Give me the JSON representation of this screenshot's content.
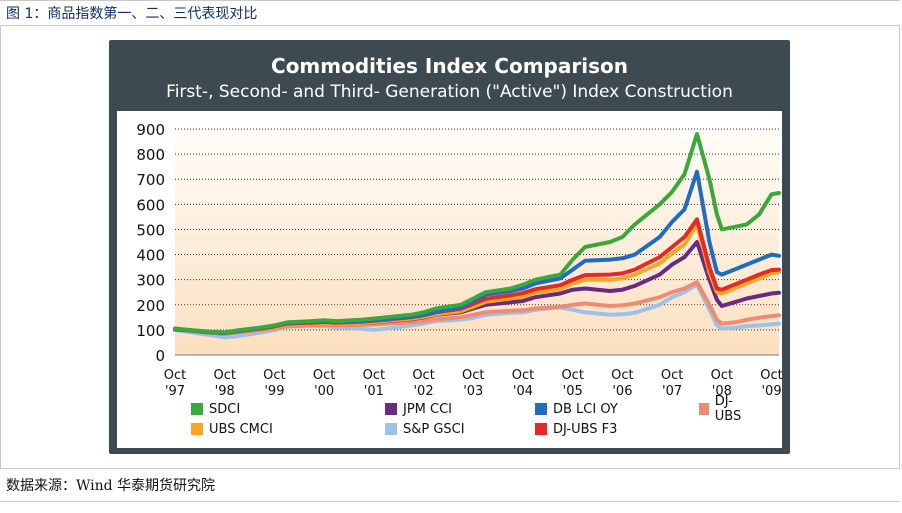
{
  "figure": {
    "caption": "图 1：商品指数第一、二、三代表现对比",
    "source": "数据来源：Wind 华泰期货研究院"
  },
  "chart_data": {
    "type": "line",
    "title": "Commodities Index Comparison",
    "subtitle": "First-, Second- and Third- Generation (\"Active\") Index Construction",
    "xlabel": "",
    "ylabel": "",
    "ylim": [
      0,
      900
    ],
    "yticks": [
      0,
      100,
      200,
      300,
      400,
      500,
      600,
      700,
      800,
      900
    ],
    "xlim": [
      1997.75,
      2009.9
    ],
    "xticks": [
      {
        "value": 1997.75,
        "label": [
          "Oct",
          "'97"
        ]
      },
      {
        "value": 1998.75,
        "label": [
          "Oct",
          "'98"
        ]
      },
      {
        "value": 1999.75,
        "label": [
          "Oct",
          "'99"
        ]
      },
      {
        "value": 2000.75,
        "label": [
          "Oct",
          "'00"
        ]
      },
      {
        "value": 2001.75,
        "label": [
          "Oct",
          "'01"
        ]
      },
      {
        "value": 2002.75,
        "label": [
          "Oct",
          "'02"
        ]
      },
      {
        "value": 2003.75,
        "label": [
          "Oct",
          "'03"
        ]
      },
      {
        "value": 2004.75,
        "label": [
          "Oct",
          "'04"
        ]
      },
      {
        "value": 2005.75,
        "label": [
          "Oct",
          "'05"
        ]
      },
      {
        "value": 2006.75,
        "label": [
          "Oct",
          "'06"
        ]
      },
      {
        "value": 2007.75,
        "label": [
          "Oct",
          "'07"
        ]
      },
      {
        "value": 2008.75,
        "label": [
          "Oct",
          "'08"
        ]
      },
      {
        "value": 2009.75,
        "label": [
          "Oct",
          "'09"
        ]
      }
    ],
    "grid": "horizontal-dotted",
    "legend_position": "bottom",
    "x": [
      1997.75,
      1998.0,
      1998.5,
      1998.75,
      1999.0,
      1999.5,
      1999.75,
      2000.0,
      2000.5,
      2000.75,
      2001.0,
      2001.5,
      2001.75,
      2002.0,
      2002.5,
      2002.75,
      2003.0,
      2003.5,
      2003.75,
      2004.0,
      2004.5,
      2004.75,
      2005.0,
      2005.5,
      2005.75,
      2006.0,
      2006.5,
      2006.75,
      2007.0,
      2007.5,
      2007.75,
      2008.0,
      2008.25,
      2008.5,
      2008.65,
      2008.75,
      2009.0,
      2009.25,
      2009.5,
      2009.75,
      2009.9
    ],
    "series": [
      {
        "name": "SDCI",
        "color": "#3aa83a",
        "values": [
          105,
          100,
          92,
          90,
          98,
          110,
          118,
          130,
          135,
          138,
          135,
          140,
          145,
          150,
          160,
          170,
          185,
          200,
          225,
          250,
          265,
          280,
          300,
          320,
          380,
          430,
          450,
          470,
          520,
          600,
          650,
          720,
          880,
          700,
          560,
          500,
          510,
          520,
          560,
          640,
          645
        ]
      },
      {
        "name": "JPM CCI",
        "color": "#6a2a82",
        "values": [
          102,
          98,
          88,
          86,
          92,
          105,
          112,
          122,
          125,
          128,
          125,
          128,
          130,
          135,
          142,
          150,
          160,
          170,
          185,
          200,
          210,
          215,
          230,
          245,
          260,
          265,
          255,
          260,
          275,
          320,
          360,
          390,
          450,
          300,
          220,
          195,
          210,
          225,
          235,
          245,
          248
        ]
      },
      {
        "name": "DB LCI OY",
        "color": "#1f6cc0",
        "values": [
          104,
          99,
          90,
          88,
          95,
          108,
          116,
          128,
          132,
          135,
          132,
          135,
          138,
          143,
          152,
          160,
          172,
          190,
          215,
          240,
          255,
          265,
          285,
          305,
          340,
          375,
          380,
          385,
          400,
          470,
          530,
          580,
          730,
          450,
          330,
          320,
          340,
          360,
          380,
          400,
          395
        ]
      },
      {
        "name": "DJ-UBS",
        "color": "#f08a70",
        "values": [
          103,
          98,
          88,
          85,
          90,
          100,
          106,
          115,
          118,
          120,
          118,
          120,
          122,
          125,
          130,
          135,
          142,
          150,
          160,
          170,
          176,
          178,
          185,
          192,
          200,
          205,
          195,
          198,
          205,
          230,
          250,
          265,
          290,
          200,
          140,
          125,
          130,
          140,
          148,
          155,
          158
        ]
      },
      {
        "name": "UBS CMCI",
        "color": "#f5a623",
        "values": [
          104,
          99,
          89,
          86,
          92,
          104,
          110,
          120,
          124,
          127,
          124,
          128,
          131,
          136,
          144,
          152,
          162,
          174,
          192,
          212,
          225,
          232,
          248,
          262,
          285,
          300,
          300,
          305,
          320,
          365,
          405,
          440,
          520,
          330,
          250,
          245,
          265,
          285,
          305,
          325,
          330
        ]
      },
      {
        "name": "S&P GSCI",
        "color": "#9fc1e8",
        "values": [
          100,
          92,
          78,
          70,
          75,
          90,
          100,
          112,
          118,
          115,
          110,
          105,
          100,
          105,
          118,
          125,
          135,
          140,
          148,
          160,
          168,
          170,
          180,
          190,
          180,
          170,
          160,
          162,
          168,
          200,
          230,
          250,
          280,
          180,
          120,
          105,
          108,
          115,
          118,
          122,
          125
        ]
      },
      {
        "name": "DJ-UBS F3",
        "color": "#e62828",
        "values": [
          105,
          100,
          90,
          88,
          94,
          106,
          114,
          125,
          129,
          132,
          129,
          133,
          136,
          141,
          150,
          158,
          170,
          184,
          204,
          224,
          238,
          246,
          262,
          278,
          300,
          318,
          320,
          325,
          340,
          390,
          430,
          470,
          540,
          350,
          265,
          260,
          280,
          300,
          320,
          338,
          340
        ]
      }
    ]
  }
}
